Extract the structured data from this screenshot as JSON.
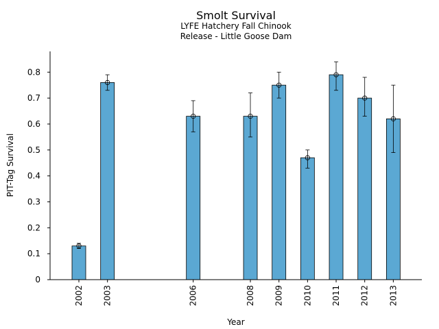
{
  "chart_data": {
    "type": "bar",
    "title": "Smolt Survival",
    "subtitle_lines": [
      "LYFE Hatchery Fall Chinook",
      "Release - Little Goose Dam"
    ],
    "xlabel": "Year",
    "ylabel": "PIT-Tag Survival",
    "x": [
      2002,
      2003,
      2006,
      2008,
      2009,
      2010,
      2011,
      2012,
      2013
    ],
    "categories": [
      "2002",
      "2003",
      "2006",
      "2008",
      "2009",
      "2010",
      "2011",
      "2012",
      "2013"
    ],
    "values": [
      0.13,
      0.76,
      0.63,
      0.63,
      0.75,
      0.47,
      0.79,
      0.7,
      0.62
    ],
    "error_low": [
      0.12,
      0.73,
      0.57,
      0.55,
      0.7,
      0.43,
      0.73,
      0.63,
      0.49
    ],
    "error_high": [
      0.14,
      0.79,
      0.69,
      0.72,
      0.8,
      0.5,
      0.84,
      0.78,
      0.75
    ],
    "ylim": [
      0,
      0.88
    ],
    "xlim": [
      2001,
      2014
    ],
    "yticks": [
      0,
      0.1,
      0.2,
      0.3,
      0.4,
      0.5,
      0.6,
      0.7,
      0.8
    ],
    "ytick_labels": [
      "0",
      "0.1",
      "0.2",
      "0.3",
      "0.4",
      "0.5",
      "0.6",
      "0.7",
      "0.8"
    ],
    "grid": false,
    "colors": {
      "bar": "#5ba8d3",
      "edge": "#000000"
    }
  }
}
